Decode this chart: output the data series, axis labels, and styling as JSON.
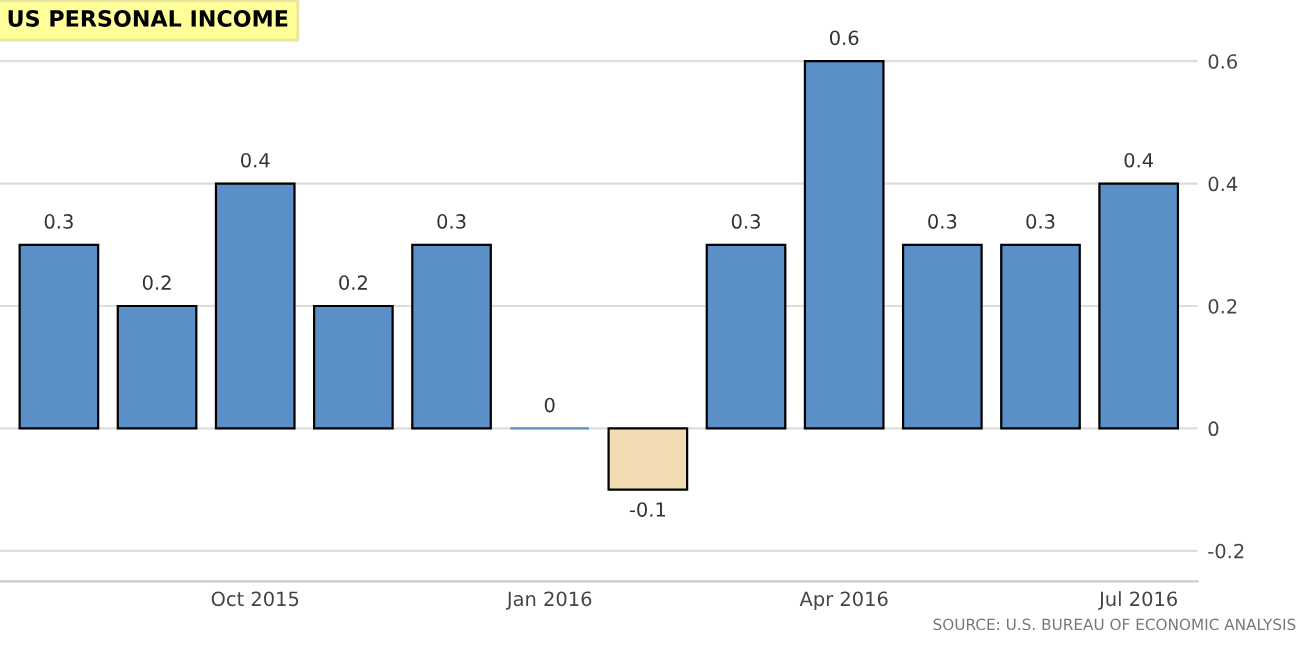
{
  "chart_data": {
    "type": "bar",
    "title": "US PERSONAL INCOME",
    "categories": [
      null,
      null,
      "Oct 2015",
      null,
      null,
      "Jan 2016",
      null,
      null,
      "Apr 2016",
      null,
      null,
      "Jul 2016"
    ],
    "values": [
      0.3,
      0.2,
      0.4,
      0.2,
      0.3,
      0,
      -0.1,
      0.3,
      0.6,
      0.3,
      0.3,
      0.4
    ],
    "colors": [
      "#5b8fc7",
      "#5b8fc7",
      "#5b8fc7",
      "#5b8fc7",
      "#5b8fc7",
      "#5b8fc7",
      "#f3dcb4",
      "#5b8fc7",
      "#5b8fc7",
      "#5b8fc7",
      "#5b8fc7",
      "#5b8fc7"
    ],
    "ylim": [
      -0.25,
      0.7
    ],
    "yticks": [
      -0.2,
      0,
      0.2,
      0.4,
      0.6
    ],
    "grid": "y",
    "data_labels": true,
    "annotations": [
      "SOURCE: U.S. BUREAU OF ECONOMIC ANALYSIS"
    ]
  }
}
